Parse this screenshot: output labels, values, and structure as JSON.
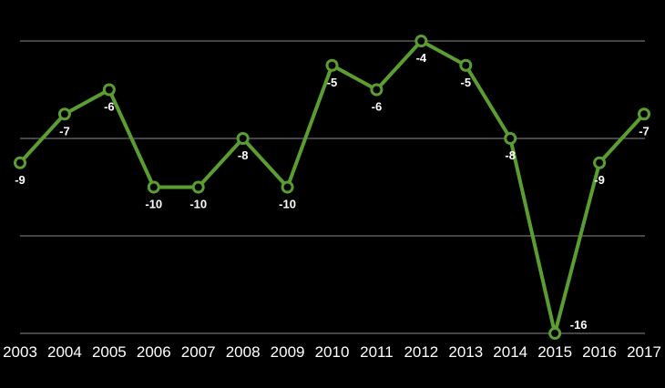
{
  "chart_data": {
    "type": "line",
    "categories": [
      "2003",
      "2004",
      "2005",
      "2006",
      "2007",
      "2008",
      "2009",
      "2010",
      "2011",
      "2012",
      "2013",
      "2014",
      "2015",
      "2016",
      "2017"
    ],
    "values": [
      -9,
      -7,
      -6,
      -10,
      -10,
      -8,
      -10,
      -5,
      -6,
      -4,
      -5,
      -8,
      -16,
      -9,
      -7
    ],
    "data_labels": [
      "-9",
      "-7",
      "-6",
      "-10",
      "-10",
      "-8",
      "-10",
      "-5",
      "-6",
      "-4",
      "-5",
      "-8",
      "-16",
      "-9",
      "-7"
    ],
    "ylim": [
      -16,
      -4
    ],
    "gridlines": [
      -4,
      -8,
      -12,
      -16
    ],
    "grid": true,
    "y_tick_labels_shown": false,
    "line_color": "#5a9e32",
    "background": "#000000",
    "title": "",
    "xlabel": "",
    "ylabel": ""
  }
}
